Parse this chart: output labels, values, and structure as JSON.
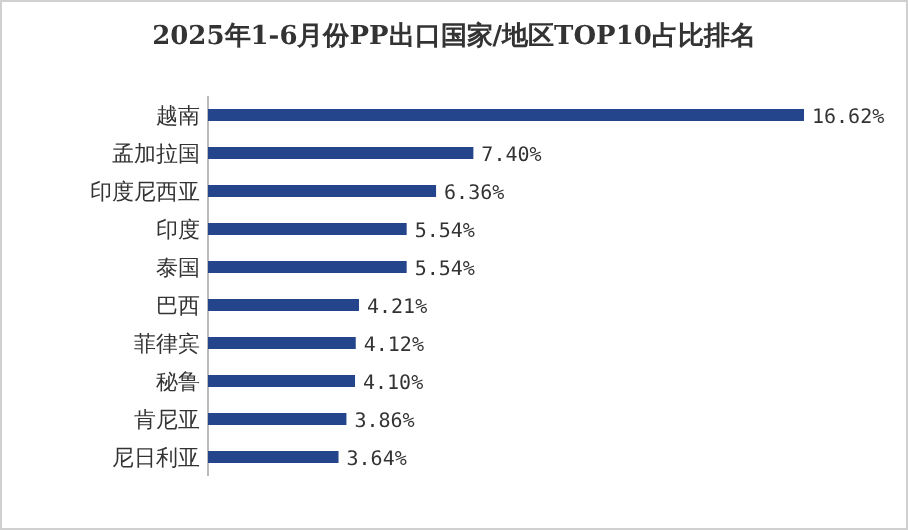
{
  "chart_data": {
    "type": "bar",
    "orientation": "horizontal",
    "title": "2025年1-6月份PP出口国家/地区TOP10占比排名",
    "categories": [
      "越南",
      "孟加拉国",
      "印度尼西亚",
      "印度",
      "泰国",
      "巴西",
      "菲律宾",
      "秘鲁",
      "肯尼亚",
      "尼日利亚"
    ],
    "values": [
      16.62,
      7.4,
      6.36,
      5.54,
      5.54,
      4.21,
      4.12,
      4.1,
      3.86,
      3.64
    ],
    "value_labels": [
      "16.62%",
      "7.40%",
      "6.36%",
      "5.54%",
      "5.54%",
      "4.21%",
      "4.12%",
      "4.10%",
      "3.86%",
      "3.64%"
    ],
    "color": "#24448c"
  }
}
